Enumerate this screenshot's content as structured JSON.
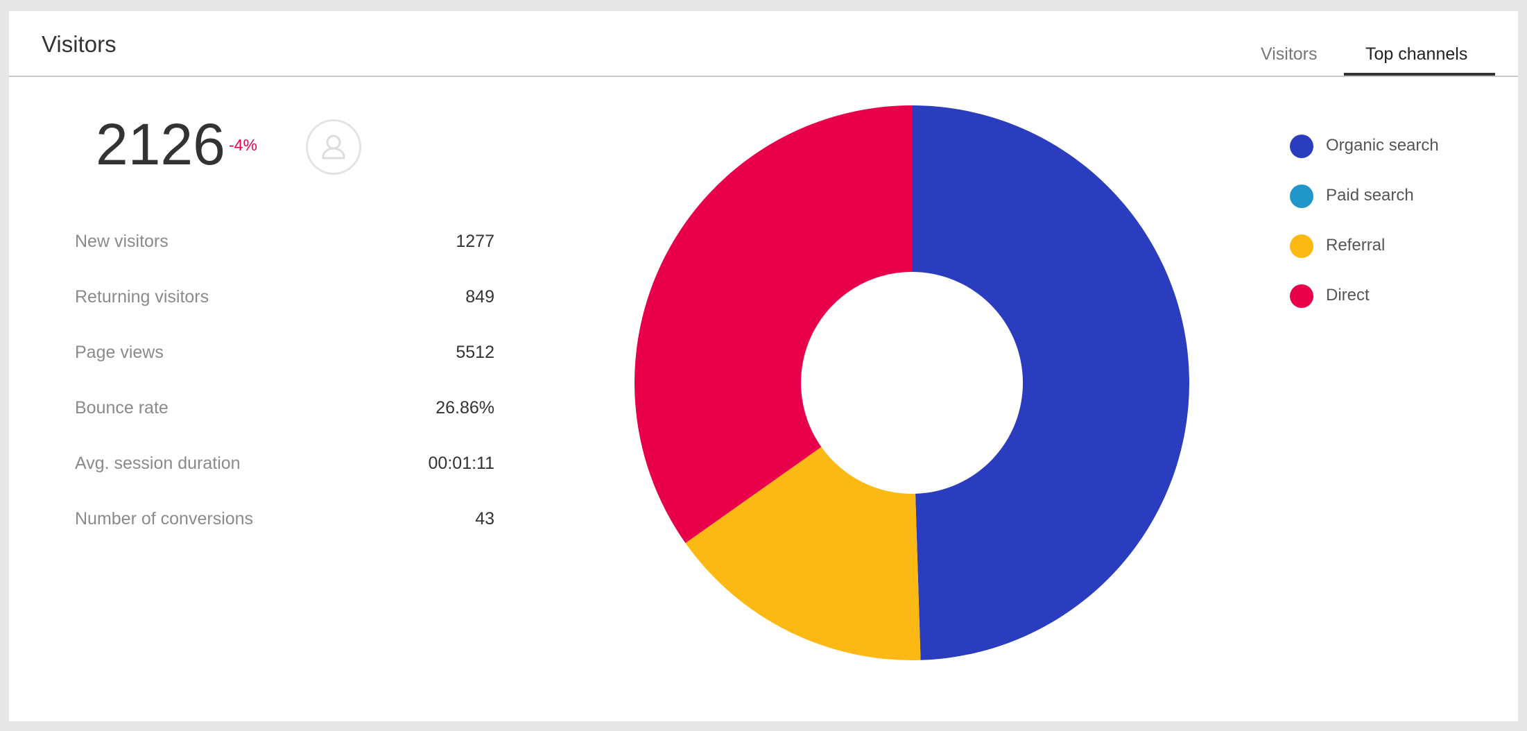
{
  "header": {
    "title": "Visitors",
    "tabs": [
      {
        "label": "Visitors",
        "active": false
      },
      {
        "label": "Top channels",
        "active": true
      }
    ]
  },
  "summary": {
    "total_visitors": "2126",
    "change": "-4%",
    "change_color": "#e8004a",
    "icon": "user-icon"
  },
  "stats": [
    {
      "label": "New visitors",
      "value": "1277"
    },
    {
      "label": "Returning visitors",
      "value": "849"
    },
    {
      "label": "Page views",
      "value": "5512"
    },
    {
      "label": "Bounce rate",
      "value": "26.86%"
    },
    {
      "label": "Avg. session duration",
      "value": "00:01:11"
    },
    {
      "label": "Number of conversions",
      "value": "43"
    }
  ],
  "legend": [
    {
      "label": "Organic search",
      "color": "#2b3dbf"
    },
    {
      "label": "Paid search",
      "color": "#2196c9"
    },
    {
      "label": "Referral",
      "color": "#fdb913"
    },
    {
      "label": "Direct",
      "color": "#e8004a"
    }
  ],
  "chart_data": {
    "type": "pie",
    "variant": "donut",
    "categories": [
      "Organic search",
      "Paid search",
      "Referral",
      "Direct"
    ],
    "values": [
      49.5,
      0,
      15.7,
      34.8
    ],
    "colors": [
      "#2b3dbf",
      "#2196c9",
      "#fdb913",
      "#e8004a"
    ],
    "legend_position": "right"
  }
}
